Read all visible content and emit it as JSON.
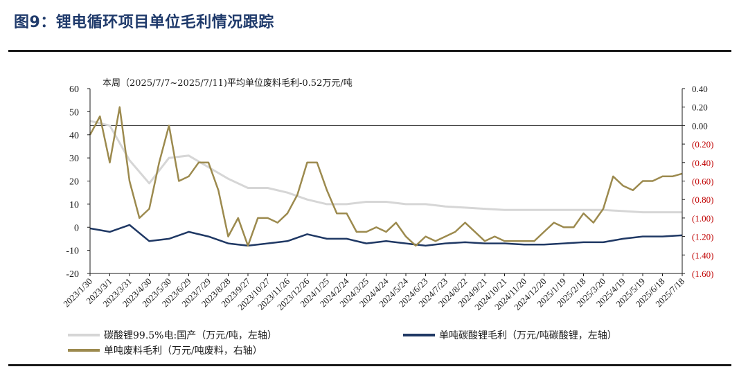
{
  "title": "图9：锂电循环项目单位毛利情况跟踪",
  "colors": {
    "accent": "#1f3a6b",
    "series_gray": "#d6d6d6",
    "series_navy": "#1f3864",
    "series_olive": "#9c8a4e",
    "right_axis_red": "#c00000"
  },
  "chart_data": {
    "type": "line",
    "annotation": "本周（2025/7/7~2025/7/11)平均单位废料毛利-0.52万元/吨",
    "x_ticks": [
      "2023/1/30",
      "2023/3/1",
      "2023/3/31",
      "2023/4/30",
      "2023/5/30",
      "2023/6/29",
      "2023/7/29",
      "2023/8/28",
      "2023/9/27",
      "2023/10/27",
      "2023/11/26",
      "2023/12/26",
      "2024/1/25",
      "2024/2/24",
      "2024/3/25",
      "2024/4/24",
      "2024/5/24",
      "2024/6/23",
      "2024/7/23",
      "2024/8/22",
      "2024/9/21",
      "2024/10/21",
      "2024/11/20",
      "2024/12/20",
      "2025/1/19",
      "2025/2/18",
      "2025/3/20",
      "2025/4/19",
      "2025/5/19",
      "2025/6/18",
      "2025/7/18"
    ],
    "y_left": {
      "min": -20,
      "max": 60,
      "ticks": [
        "60",
        "50",
        "40",
        "30",
        "20",
        "10",
        "0",
        "-10",
        "-20"
      ]
    },
    "y_right": {
      "min": -1.6,
      "max": 0.4,
      "ticks": [
        "0.40",
        "0.20",
        "0.00",
        "(0.20)",
        "(0.40)",
        "(0.60)",
        "(0.80)",
        "(1.00)",
        "(1.20)",
        "(1.40)",
        "(1.60)"
      ]
    },
    "series": [
      {
        "name": "碳酸锂99.5%电:国产（万元/吨，左轴）",
        "axis": "left",
        "color": "#d6d6d6",
        "x": [
          0,
          1,
          2,
          3,
          4,
          5,
          6,
          7,
          8,
          9,
          10,
          11,
          12,
          13,
          14,
          15,
          16,
          17,
          18,
          19,
          20,
          21,
          22,
          23,
          24,
          25,
          26,
          27,
          28,
          29,
          30
        ],
        "values": [
          46,
          44,
          29,
          19,
          30,
          31,
          26,
          21,
          17,
          17,
          15,
          12,
          10,
          10,
          11,
          11,
          10,
          10,
          9,
          8.5,
          8,
          7.5,
          7.5,
          7.5,
          7.5,
          7.5,
          7.5,
          7,
          6.5,
          6.5,
          6.5
        ]
      },
      {
        "name": "单吨碳酸锂毛利（万元/吨碳酸锂，左轴）",
        "axis": "left",
        "color": "#1f3864",
        "x": [
          0,
          1,
          2,
          3,
          4,
          5,
          6,
          7,
          8,
          9,
          10,
          11,
          12,
          13,
          14,
          15,
          16,
          17,
          18,
          19,
          20,
          21,
          22,
          23,
          24,
          25,
          26,
          27,
          28,
          29,
          30
        ],
        "values": [
          -0.5,
          -2,
          1,
          -6,
          -5,
          -2,
          -4,
          -7,
          -8,
          -7,
          -6,
          -3,
          -5,
          -5,
          -7,
          -6,
          -7,
          -8,
          -7,
          -6.5,
          -7,
          -7,
          -7.5,
          -7.5,
          -7,
          -6.5,
          -6.5,
          -5,
          -4,
          -4,
          -3.5
        ]
      },
      {
        "name": "单吨废料毛利（万元/吨废料，右轴）",
        "axis": "right",
        "color": "#9c8a4e",
        "x": [
          0,
          0.5,
          1,
          1.5,
          2,
          2.5,
          3,
          3.5,
          4,
          4.5,
          5,
          5.5,
          6,
          6.5,
          7,
          7.5,
          8,
          8.5,
          9,
          9.5,
          10,
          10.5,
          11,
          11.5,
          12,
          12.5,
          13,
          13.5,
          14,
          14.5,
          15,
          15.5,
          16,
          16.5,
          17,
          17.5,
          18,
          18.5,
          19,
          19.5,
          20,
          20.5,
          21,
          21.5,
          22,
          22.5,
          23,
          23.5,
          24,
          24.5,
          25,
          25.5,
          26,
          26.5,
          27,
          27.5,
          28,
          28.5,
          29,
          29.5,
          30
        ],
        "values": [
          -0.1,
          0.1,
          -0.4,
          0.2,
          -0.6,
          -1.0,
          -0.9,
          -0.4,
          0.0,
          -0.6,
          -0.55,
          -0.4,
          -0.4,
          -0.7,
          -1.2,
          -1.0,
          -1.3,
          -1.0,
          -1.0,
          -1.05,
          -0.95,
          -0.75,
          -0.4,
          -0.4,
          -0.7,
          -0.95,
          -0.95,
          -1.15,
          -1.15,
          -1.1,
          -1.15,
          -1.05,
          -1.2,
          -1.3,
          -1.2,
          -1.25,
          -1.2,
          -1.15,
          -1.05,
          -1.15,
          -1.25,
          -1.2,
          -1.25,
          -1.25,
          -1.25,
          -1.25,
          -1.15,
          -1.05,
          -1.1,
          -1.1,
          -0.95,
          -1.05,
          -0.9,
          -0.55,
          -0.65,
          -0.7,
          -0.6,
          -0.6,
          -0.55,
          -0.55,
          -0.52
        ]
      }
    ],
    "legend_position": "bottom"
  }
}
